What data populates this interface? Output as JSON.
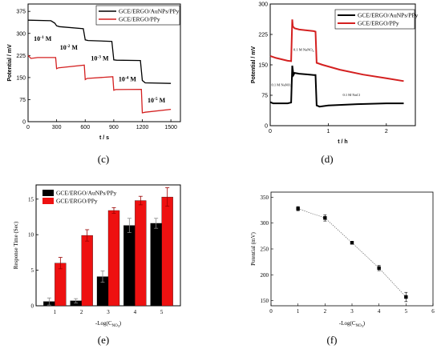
{
  "chart_data": [
    {
      "panel": "(c)",
      "type": "line",
      "xlabel": "t / s",
      "ylabel": "Potential / mV",
      "xlim": [
        0,
        1600
      ],
      "ylim": [
        0,
        400
      ],
      "xticks": [
        "0",
        "300",
        "600",
        "900",
        "1200",
        "1500"
      ],
      "yticks": [
        "0",
        "75",
        "150",
        "225",
        "300",
        "375"
      ],
      "legend": "top-right",
      "series": [
        {
          "name": "GCE/ERGO/AuNPs/PPy",
          "color": "#000000",
          "x": [
            0,
            240,
            280,
            300,
            330,
            580,
            600,
            630,
            880,
            900,
            930,
            1180,
            1200,
            1230,
            1500
          ],
          "y": [
            345,
            343,
            335,
            326,
            323,
            316,
            278,
            276,
            273,
            210,
            209,
            208,
            140,
            132,
            130
          ]
        },
        {
          "name": "GCE/ERGO/PPy",
          "color": "#d42020",
          "x": [
            0,
            30,
            100,
            290,
            300,
            320,
            590,
            600,
            620,
            890,
            900,
            920,
            1190,
            1200,
            1230,
            1500
          ],
          "y": [
            225,
            215,
            218,
            218,
            180,
            183,
            192,
            143,
            147,
            153,
            107,
            109,
            110,
            30,
            32,
            42
          ]
        }
      ],
      "annotations": [
        {
          "text": "10",
          "sup": "-1",
          "unit": " M",
          "x": 60,
          "y": 275
        },
        {
          "text": "10",
          "sup": "-2",
          "unit": " M",
          "x": 335,
          "y": 245
        },
        {
          "text": "10",
          "sup": "-3",
          "unit": " M",
          "x": 660,
          "y": 208
        },
        {
          "text": "10",
          "sup": "-4",
          "unit": " M",
          "x": 950,
          "y": 138
        },
        {
          "text": "10",
          "sup": "-5",
          "unit": " M",
          "x": 1255,
          "y": 65
        }
      ]
    },
    {
      "panel": "(d)",
      "type": "line",
      "xlabel": "t / h",
      "ylabel": "Potential / mV",
      "xlim": [
        0,
        2.5
      ],
      "ylim": [
        0,
        300
      ],
      "xticks": [
        "0",
        "1",
        "2"
      ],
      "yticks": [
        "0",
        "75",
        "150",
        "225",
        "300"
      ],
      "legend": "top-right",
      "series": [
        {
          "name": "GCE/ERGO/AuNPs/PPy",
          "color": "#000000",
          "x": [
            0,
            0.05,
            0.3,
            0.36,
            0.38,
            0.4,
            0.42,
            0.5,
            0.75,
            0.78,
            0.8,
            0.85,
            1.0,
            1.5,
            2.0,
            2.3
          ],
          "y": [
            58,
            55,
            55,
            57,
            148,
            125,
            130,
            128,
            125,
            125,
            50,
            47,
            50,
            53,
            55,
            55
          ]
        },
        {
          "name": "GCE/ERGO/PPy",
          "color": "#d42020",
          "x": [
            0,
            0.1,
            0.3,
            0.36,
            0.38,
            0.39,
            0.42,
            0.5,
            0.75,
            0.78,
            0.8,
            0.9,
            1.2,
            1.6,
            2.0,
            2.3
          ],
          "y": [
            172,
            167,
            160,
            159,
            262,
            245,
            240,
            237,
            233,
            232,
            155,
            150,
            138,
            126,
            117,
            110
          ]
        }
      ],
      "annotations": [
        {
          "text": "0.1 M NaNO",
          "sub": "3",
          "x": 0.4,
          "y": 185
        },
        {
          "text": "0.1 M NaNO",
          "sub": "3",
          "x": 0.02,
          "y": 98
        },
        {
          "text": "0.1 M NaCl",
          "x": 1.25,
          "y": 73
        }
      ]
    },
    {
      "panel": "(e)",
      "type": "bar",
      "xlabel": "-Log(C",
      "xlabel_sub": "NO",
      "xlabel_sub2": "3",
      "xlabel_end": ")",
      "ylabel": "Response Time (Sec)",
      "categories": [
        "1",
        "2",
        "3",
        "4",
        "5"
      ],
      "ylim": [
        0,
        17
      ],
      "yticks": [
        "0",
        "5",
        "10",
        "15"
      ],
      "legend": "top-left",
      "series": [
        {
          "name": "GCE/ERGO/AuNPs/PPy",
          "color": "#000000",
          "values": [
            0.6,
            0.7,
            4.1,
            11.3,
            11.6
          ],
          "errors": [
            0.5,
            0.3,
            0.8,
            1.0,
            0.7
          ]
        },
        {
          "name": "GCE/ERGO/PPy",
          "color": "#ee1111",
          "values": [
            6.0,
            9.9,
            13.4,
            14.8,
            15.3
          ],
          "errors": [
            0.8,
            0.8,
            0.4,
            0.6,
            1.3
          ]
        }
      ]
    },
    {
      "panel": "(f)",
      "type": "scatter",
      "xlabel": "-Log(C",
      "xlabel_sub": "NO",
      "xlabel_sub2": "3",
      "xlabel_end": ")",
      "ylabel": "Potential (mV)",
      "xlim": [
        0,
        6
      ],
      "ylim": [
        140,
        360
      ],
      "xticks": [
        "0",
        "1",
        "2",
        "3",
        "4",
        "5",
        "6"
      ],
      "yticks": [
        "150",
        "200",
        "250",
        "300",
        "350"
      ],
      "grid": false,
      "series": [
        {
          "color": "#000000",
          "x": [
            1,
            2,
            3,
            4,
            5
          ],
          "y": [
            328,
            310,
            262,
            213,
            157
          ],
          "errors": [
            4,
            6,
            2,
            5,
            9
          ]
        }
      ]
    }
  ]
}
